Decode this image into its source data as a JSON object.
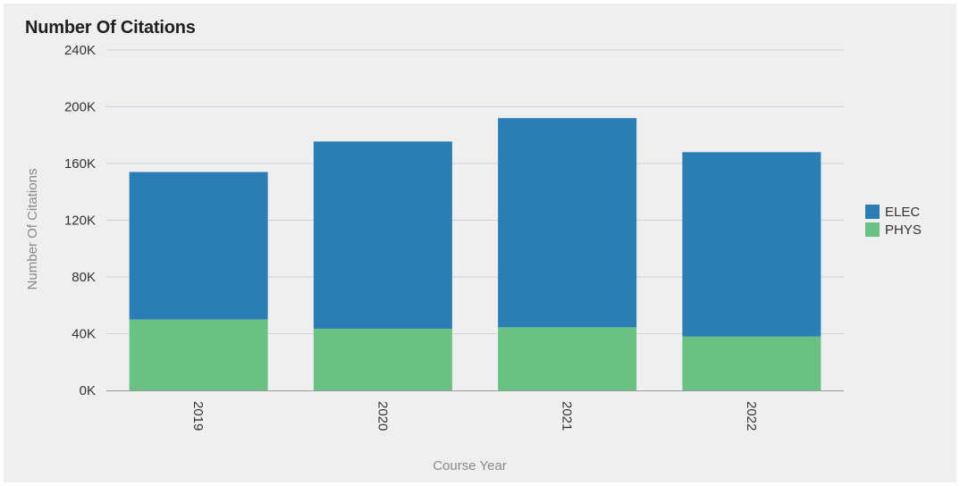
{
  "chart_data": {
    "type": "bar",
    "stacked": true,
    "title": "Number Of Citations",
    "xlabel": "Course Year",
    "ylabel": "Number Of Citations",
    "categories": [
      "2019",
      "2020",
      "2021",
      "2022"
    ],
    "series": [
      {
        "name": "PHYS",
        "color": "#68c283",
        "values": [
          50000,
          43500,
          44500,
          38000
        ]
      },
      {
        "name": "ELEC",
        "color": "#2a7db5",
        "values": [
          104000,
          132000,
          147500,
          130000
        ]
      }
    ],
    "ylim": [
      0,
      240000
    ],
    "yticks": [
      {
        "value": 0,
        "label": "0K"
      },
      {
        "value": 40000,
        "label": "40K"
      },
      {
        "value": 80000,
        "label": "80K"
      },
      {
        "value": 120000,
        "label": "120K"
      },
      {
        "value": 160000,
        "label": "160K"
      },
      {
        "value": 200000,
        "label": "200K"
      },
      {
        "value": 240000,
        "label": "240K"
      }
    ],
    "grid": true,
    "legend_position": "right",
    "legend": [
      {
        "name": "ELEC",
        "color": "#2a7db5"
      },
      {
        "name": "PHYS",
        "color": "#68c283"
      }
    ]
  }
}
